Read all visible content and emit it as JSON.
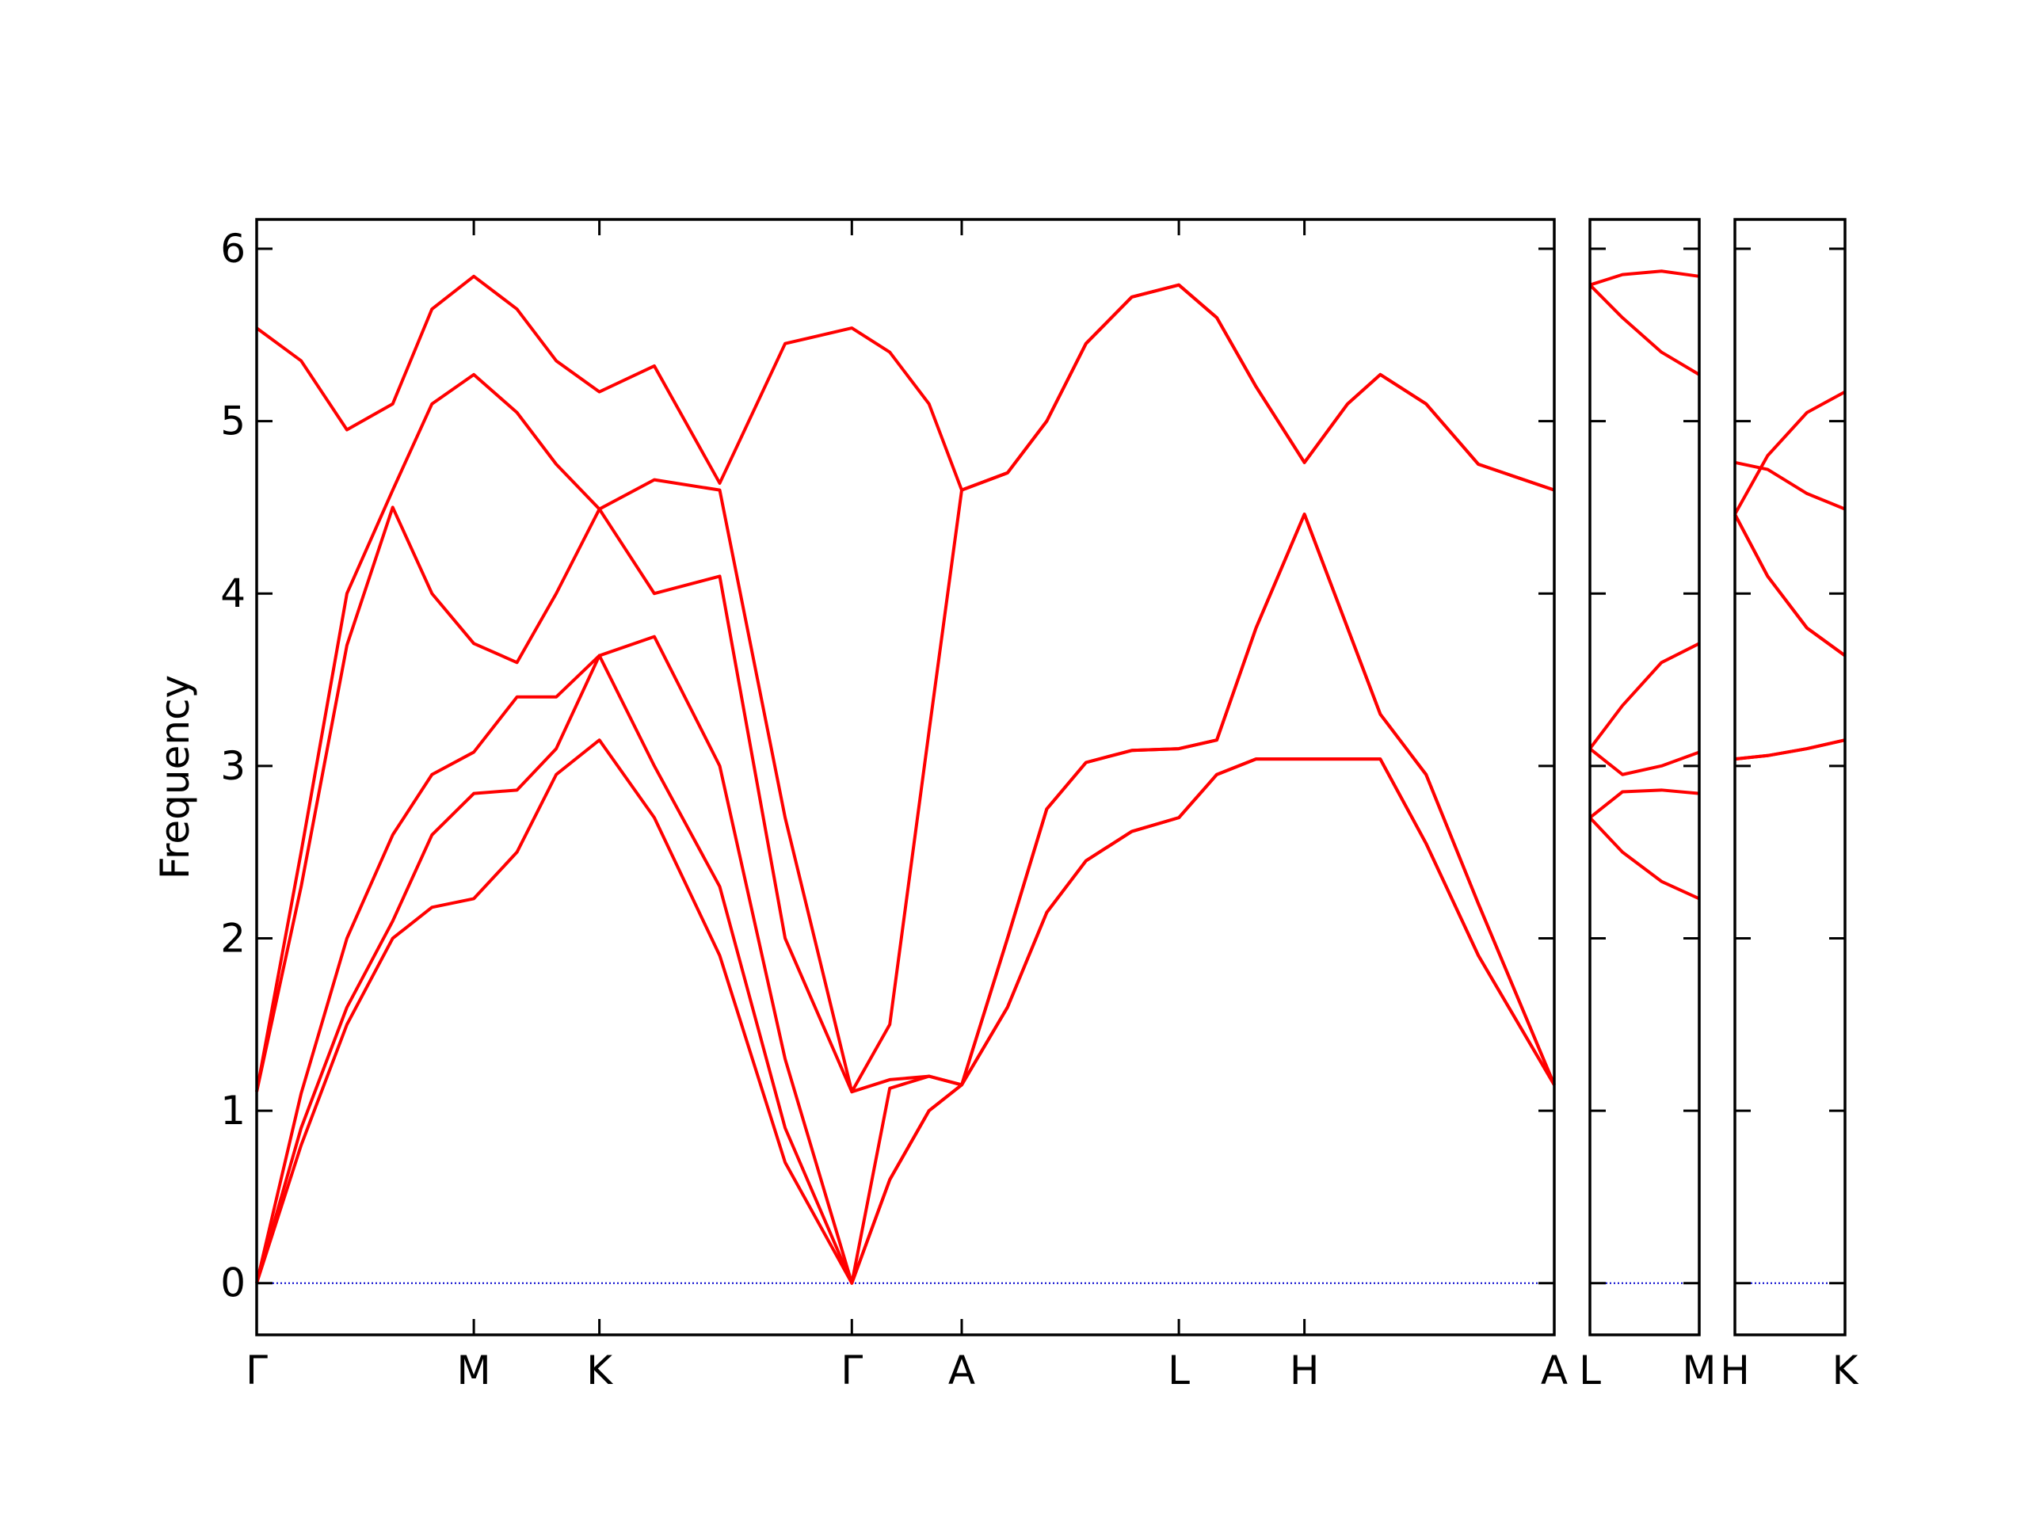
{
  "chart_data": [
    {
      "type": "line",
      "ylabel": "Frequency",
      "ytick_labels": true,
      "x": [
        0,
        0.34,
        0.69,
        1.04,
        1.34,
        1.66,
        1.99,
        2.29,
        2.62,
        3.04,
        3.54,
        4.04,
        4.55,
        4.84,
        5.14,
        5.39,
        5.74,
        6.04,
        6.34,
        6.69,
        7.05,
        7.34,
        7.64,
        8.01,
        8.34,
        8.59,
        8.94,
        9.34,
        9.92
      ],
      "xlim": [
        0,
        9.92
      ],
      "xticks": [
        {
          "value": 0,
          "label": "Γ"
        },
        {
          "value": 1.66,
          "label": "M"
        },
        {
          "value": 2.62,
          "label": "K"
        },
        {
          "value": 4.55,
          "label": "Γ"
        },
        {
          "value": 5.39,
          "label": "A"
        },
        {
          "value": 7.05,
          "label": "L"
        },
        {
          "value": 8.01,
          "label": "H"
        },
        {
          "value": 9.92,
          "label": "A"
        }
      ],
      "ylim": [
        -0.3,
        6.17
      ],
      "yticks": [
        0,
        1,
        2,
        3,
        4,
        5,
        6
      ],
      "hline": 0,
      "hline_color": "#0000cc",
      "series": [
        {
          "color": "#ff0000",
          "values": [
            0,
            0.8,
            1.5,
            2.0,
            2.18,
            2.23,
            2.5,
            2.95,
            3.15,
            2.7,
            1.9,
            0.7,
            0,
            0.6,
            1.0,
            1.15,
            1.6,
            2.15,
            2.45,
            2.62,
            2.7,
            2.95,
            3.04,
            3.04,
            3.04,
            3.04,
            2.55,
            1.9,
            1.15
          ]
        },
        {
          "color": "#ff0000",
          "values": [
            0,
            0.9,
            1.6,
            2.1,
            2.6,
            2.84,
            2.86,
            3.1,
            3.64,
            3.0,
            2.3,
            0.9,
            0,
            0.6,
            1.0,
            1.15,
            1.6,
            2.15,
            2.45,
            2.62,
            2.7,
            2.95,
            3.04,
            3.04,
            3.04,
            3.04,
            2.55,
            1.9,
            1.15
          ]
        },
        {
          "color": "#ff0000",
          "values": [
            0,
            1.1,
            2.0,
            2.6,
            2.95,
            3.08,
            3.4,
            3.4,
            3.64,
            3.75,
            3.0,
            1.3,
            0,
            1.13,
            1.2,
            1.15,
            2.0,
            2.75,
            3.02,
            3.09,
            3.1,
            3.15,
            3.8,
            4.46,
            3.8,
            3.3,
            2.95,
            2.2,
            1.15
          ]
        },
        {
          "color": "#ff0000",
          "values": [
            1.11,
            2.3,
            3.7,
            4.5,
            4.0,
            3.71,
            3.6,
            4.0,
            4.49,
            4.0,
            4.1,
            2.0,
            1.11,
            1.18,
            1.2,
            1.15,
            2.0,
            2.75,
            3.02,
            3.09,
            3.1,
            3.15,
            3.8,
            4.46,
            3.8,
            3.3,
            2.95,
            2.2,
            1.15
          ]
        },
        {
          "color": "#ff0000",
          "values": [
            1.11,
            2.5,
            4.0,
            4.6,
            5.1,
            5.27,
            5.05,
            4.75,
            4.49,
            4.66,
            4.6,
            2.7,
            1.11,
            1.5,
            3.2,
            4.6,
            4.7,
            5.0,
            5.45,
            5.72,
            5.79,
            5.6,
            5.2,
            4.76,
            5.1,
            5.27,
            5.1,
            4.75,
            4.6
          ]
        },
        {
          "color": "#ff0000",
          "values": [
            5.54,
            5.35,
            4.95,
            5.1,
            5.65,
            5.84,
            5.65,
            5.35,
            5.17,
            5.32,
            4.64,
            5.45,
            5.54,
            5.4,
            5.1,
            4.6,
            4.7,
            5.0,
            5.45,
            5.72,
            5.79,
            5.6,
            5.2,
            4.76,
            5.1,
            5.27,
            5.1,
            4.75,
            4.6
          ]
        }
      ]
    },
    {
      "type": "line",
      "ytick_labels": false,
      "x": [
        0,
        0.25,
        0.55,
        0.84
      ],
      "xlim": [
        0,
        0.84
      ],
      "xticks": [
        {
          "value": 0,
          "label": "L"
        },
        {
          "value": 0.84,
          "label": "M"
        }
      ],
      "ylim": [
        -0.3,
        6.17
      ],
      "yticks": [
        0,
        1,
        2,
        3,
        4,
        5,
        6
      ],
      "hline": 0,
      "hline_color": "#0000cc",
      "series": [
        {
          "color": "#ff0000",
          "values": [
            2.7,
            2.5,
            2.33,
            2.23
          ]
        },
        {
          "color": "#ff0000",
          "values": [
            2.7,
            2.85,
            2.86,
            2.84
          ]
        },
        {
          "color": "#ff0000",
          "values": [
            3.1,
            2.95,
            3.0,
            3.08
          ]
        },
        {
          "color": "#ff0000",
          "values": [
            3.1,
            3.35,
            3.6,
            3.71
          ]
        },
        {
          "color": "#ff0000",
          "values": [
            5.79,
            5.6,
            5.4,
            5.27
          ]
        },
        {
          "color": "#ff0000",
          "values": [
            5.79,
            5.85,
            5.87,
            5.84
          ]
        }
      ]
    },
    {
      "type": "line",
      "ytick_labels": false,
      "x": [
        0,
        0.25,
        0.55,
        0.84
      ],
      "xlim": [
        0,
        0.84
      ],
      "xticks": [
        {
          "value": 0,
          "label": "H"
        },
        {
          "value": 0.84,
          "label": "K"
        }
      ],
      "ylim": [
        -0.3,
        6.17
      ],
      "yticks": [
        0,
        1,
        2,
        3,
        4,
        5,
        6
      ],
      "hline": 0,
      "hline_color": "#0000cc",
      "series": [
        {
          "color": "#ff0000",
          "values": [
            3.04,
            3.06,
            3.1,
            3.15
          ]
        },
        {
          "color": "#ff0000",
          "values": [
            3.04,
            3.06,
            3.1,
            3.15
          ]
        },
        {
          "color": "#ff0000",
          "values": [
            4.46,
            4.1,
            3.8,
            3.64
          ]
        },
        {
          "color": "#ff0000",
          "values": [
            4.46,
            4.1,
            3.8,
            3.64
          ]
        },
        {
          "color": "#ff0000",
          "values": [
            4.76,
            4.72,
            4.58,
            4.49
          ]
        },
        {
          "color": "#ff0000",
          "values": [
            4.46,
            4.8,
            5.05,
            5.17
          ]
        }
      ]
    }
  ]
}
